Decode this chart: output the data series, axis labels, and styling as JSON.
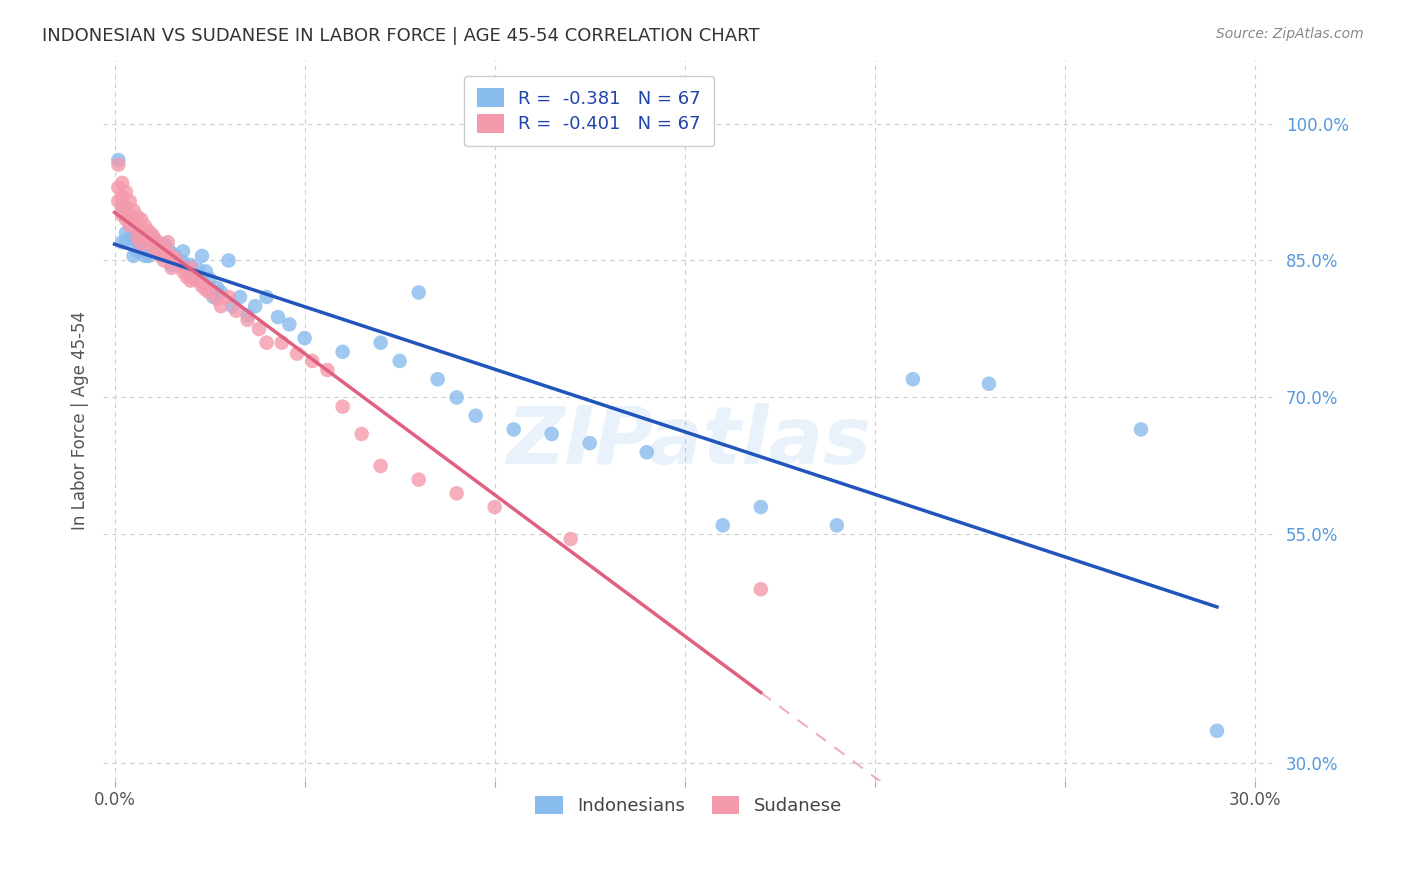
{
  "title": "INDONESIAN VS SUDANESE IN LABOR FORCE | AGE 45-54 CORRELATION CHART",
  "source": "Source: ZipAtlas.com",
  "ylabel": "In Labor Force | Age 45-54",
  "watermark": "ZIPatlas",
  "xlim": [
    -0.003,
    0.305
  ],
  "ylim": [
    0.28,
    1.07
  ],
  "xtick_positions": [
    0.0,
    0.05,
    0.1,
    0.15,
    0.2,
    0.25,
    0.3
  ],
  "xtick_labels": [
    "0.0%",
    "",
    "",
    "",
    "",
    "",
    "30.0%"
  ],
  "ytick_positions": [
    0.3,
    0.55,
    0.7,
    0.85,
    1.0
  ],
  "ytick_labels": [
    "30.0%",
    "55.0%",
    "70.0%",
    "85.0%",
    "100.0%"
  ],
  "blue_color": "#88BBEE",
  "pink_color": "#F49AAD",
  "blue_line_color": "#2255BB",
  "pink_line_color": "#E06080",
  "background_color": "#FFFFFF",
  "grid_color": "#CCCCCC",
  "blue_scatter": [
    [
      0.001,
      0.96
    ],
    [
      0.002,
      0.87
    ],
    [
      0.002,
      0.91
    ],
    [
      0.003,
      0.88
    ],
    [
      0.003,
      0.87
    ],
    [
      0.004,
      0.875
    ],
    [
      0.005,
      0.855
    ],
    [
      0.005,
      0.875
    ],
    [
      0.006,
      0.87
    ],
    [
      0.006,
      0.86
    ],
    [
      0.007,
      0.875
    ],
    [
      0.007,
      0.86
    ],
    [
      0.008,
      0.87
    ],
    [
      0.008,
      0.855
    ],
    [
      0.009,
      0.87
    ],
    [
      0.009,
      0.855
    ],
    [
      0.01,
      0.863
    ],
    [
      0.01,
      0.875
    ],
    [
      0.011,
      0.86
    ],
    [
      0.011,
      0.868
    ],
    [
      0.012,
      0.858
    ],
    [
      0.013,
      0.868
    ],
    [
      0.013,
      0.855
    ],
    [
      0.014,
      0.863
    ],
    [
      0.015,
      0.858
    ],
    [
      0.015,
      0.845
    ],
    [
      0.016,
      0.855
    ],
    [
      0.017,
      0.845
    ],
    [
      0.018,
      0.86
    ],
    [
      0.018,
      0.848
    ],
    [
      0.019,
      0.84
    ],
    [
      0.02,
      0.845
    ],
    [
      0.021,
      0.835
    ],
    [
      0.022,
      0.84
    ],
    [
      0.023,
      0.855
    ],
    [
      0.024,
      0.838
    ],
    [
      0.025,
      0.83
    ],
    [
      0.026,
      0.81
    ],
    [
      0.027,
      0.82
    ],
    [
      0.028,
      0.815
    ],
    [
      0.03,
      0.85
    ],
    [
      0.031,
      0.8
    ],
    [
      0.033,
      0.81
    ],
    [
      0.035,
      0.79
    ],
    [
      0.037,
      0.8
    ],
    [
      0.04,
      0.81
    ],
    [
      0.043,
      0.788
    ],
    [
      0.046,
      0.78
    ],
    [
      0.05,
      0.765
    ],
    [
      0.06,
      0.75
    ],
    [
      0.07,
      0.76
    ],
    [
      0.075,
      0.74
    ],
    [
      0.08,
      0.815
    ],
    [
      0.085,
      0.72
    ],
    [
      0.09,
      0.7
    ],
    [
      0.095,
      0.68
    ],
    [
      0.105,
      0.665
    ],
    [
      0.115,
      0.66
    ],
    [
      0.125,
      0.65
    ],
    [
      0.14,
      0.64
    ],
    [
      0.16,
      0.56
    ],
    [
      0.17,
      0.58
    ],
    [
      0.19,
      0.56
    ],
    [
      0.21,
      0.72
    ],
    [
      0.23,
      0.715
    ],
    [
      0.27,
      0.665
    ],
    [
      0.29,
      0.335
    ]
  ],
  "pink_scatter": [
    [
      0.001,
      0.955
    ],
    [
      0.001,
      0.93
    ],
    [
      0.001,
      0.915
    ],
    [
      0.002,
      0.935
    ],
    [
      0.002,
      0.92
    ],
    [
      0.002,
      0.91
    ],
    [
      0.002,
      0.9
    ],
    [
      0.003,
      0.925
    ],
    [
      0.003,
      0.908
    ],
    [
      0.003,
      0.895
    ],
    [
      0.004,
      0.915
    ],
    [
      0.004,
      0.9
    ],
    [
      0.004,
      0.888
    ],
    [
      0.005,
      0.905
    ],
    [
      0.005,
      0.893
    ],
    [
      0.006,
      0.898
    ],
    [
      0.006,
      0.885
    ],
    [
      0.006,
      0.875
    ],
    [
      0.007,
      0.895
    ],
    [
      0.007,
      0.88
    ],
    [
      0.007,
      0.868
    ],
    [
      0.008,
      0.888
    ],
    [
      0.008,
      0.875
    ],
    [
      0.009,
      0.882
    ],
    [
      0.009,
      0.87
    ],
    [
      0.01,
      0.878
    ],
    [
      0.01,
      0.865
    ],
    [
      0.011,
      0.872
    ],
    [
      0.011,
      0.86
    ],
    [
      0.012,
      0.868
    ],
    [
      0.012,
      0.855
    ],
    [
      0.013,
      0.862
    ],
    [
      0.013,
      0.85
    ],
    [
      0.014,
      0.858
    ],
    [
      0.014,
      0.87
    ],
    [
      0.015,
      0.855
    ],
    [
      0.015,
      0.842
    ],
    [
      0.016,
      0.852
    ],
    [
      0.017,
      0.845
    ],
    [
      0.018,
      0.838
    ],
    [
      0.019,
      0.832
    ],
    [
      0.02,
      0.842
    ],
    [
      0.02,
      0.828
    ],
    [
      0.021,
      0.83
    ],
    [
      0.022,
      0.828
    ],
    [
      0.023,
      0.822
    ],
    [
      0.024,
      0.818
    ],
    [
      0.025,
      0.815
    ],
    [
      0.027,
      0.808
    ],
    [
      0.028,
      0.8
    ],
    [
      0.03,
      0.81
    ],
    [
      0.032,
      0.795
    ],
    [
      0.035,
      0.785
    ],
    [
      0.038,
      0.775
    ],
    [
      0.04,
      0.76
    ],
    [
      0.044,
      0.76
    ],
    [
      0.048,
      0.748
    ],
    [
      0.052,
      0.74
    ],
    [
      0.056,
      0.73
    ],
    [
      0.06,
      0.69
    ],
    [
      0.065,
      0.66
    ],
    [
      0.07,
      0.625
    ],
    [
      0.08,
      0.61
    ],
    [
      0.09,
      0.595
    ],
    [
      0.1,
      0.58
    ],
    [
      0.12,
      0.545
    ],
    [
      0.17,
      0.49
    ]
  ]
}
